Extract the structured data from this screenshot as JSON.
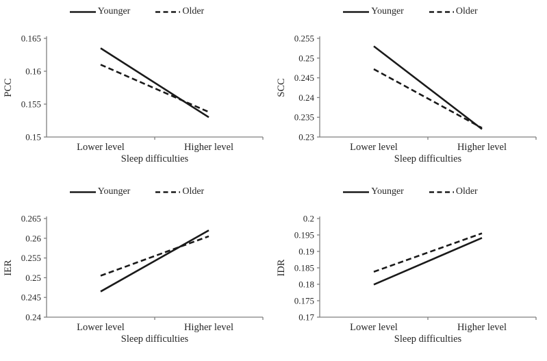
{
  "colors": {
    "line": "#1a1a1a",
    "axis": "#7f7f7f",
    "text": "#262626"
  },
  "chart_data": [
    {
      "type": "line",
      "title": "",
      "xlabel": "Sleep difficulties",
      "ylabel": "PCC",
      "categories": [
        "Lower level",
        "Higher level"
      ],
      "ylim": [
        0.15,
        0.165
      ],
      "ytick_step": 0.005,
      "grid": false,
      "legend_position": "top",
      "series": [
        {
          "name": "Younger",
          "style": "solid",
          "values": [
            0.1635,
            0.153
          ]
        },
        {
          "name": "Older",
          "style": "dashed",
          "values": [
            0.161,
            0.1538
          ]
        }
      ]
    },
    {
      "type": "line",
      "title": "",
      "xlabel": "Sleep difficulties",
      "ylabel": "SCC",
      "categories": [
        "Lower level",
        "Higher level"
      ],
      "ylim": [
        0.23,
        0.255
      ],
      "ytick_step": 0.005,
      "grid": false,
      "legend_position": "top",
      "series": [
        {
          "name": "Younger",
          "style": "solid",
          "values": [
            0.253,
            0.232
          ]
        },
        {
          "name": "Older",
          "style": "dashed",
          "values": [
            0.2472,
            0.2323
          ]
        }
      ]
    },
    {
      "type": "line",
      "title": "",
      "xlabel": "Sleep difficulties",
      "ylabel": "IER",
      "categories": [
        "Lower level",
        "Higher level"
      ],
      "ylim": [
        0.24,
        0.265
      ],
      "ytick_step": 0.005,
      "grid": false,
      "legend_position": "top",
      "series": [
        {
          "name": "Younger",
          "style": "solid",
          "values": [
            0.2465,
            0.262
          ]
        },
        {
          "name": "Older",
          "style": "dashed",
          "values": [
            0.2505,
            0.2605
          ]
        }
      ]
    },
    {
      "type": "line",
      "title": "",
      "xlabel": "Sleep difficulties",
      "ylabel": "IDR",
      "categories": [
        "Lower level",
        "Higher level"
      ],
      "ylim": [
        0.17,
        0.2
      ],
      "ytick_step": 0.005,
      "grid": false,
      "legend_position": "top",
      "series": [
        {
          "name": "Younger",
          "style": "solid",
          "values": [
            0.1799,
            0.1941
          ]
        },
        {
          "name": "Older",
          "style": "dashed",
          "values": [
            0.1838,
            0.1955
          ]
        }
      ]
    }
  ]
}
